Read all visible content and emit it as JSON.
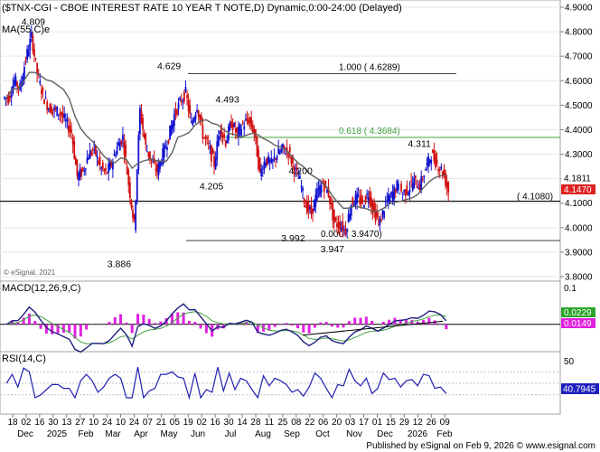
{
  "title": "($TNX-CGI - CBOE INTEREST RATE 10 YEAR T NOTE,D) Dynamic,0:00-24:00 (Delayed)",
  "copyright": "© eSignal, 2021",
  "footer": "Published by eSignal on Feb 9, 2026 © www.esignal.com",
  "colors": {
    "up": "#1010d0",
    "down": "#d01010",
    "ma": "#606060",
    "fib100": "#404040",
    "fib618": "#40a040",
    "fib0": "#404040",
    "support": "#000000",
    "macd": "#202080",
    "signal": "#40a040",
    "hist": "#e020e0",
    "rsi": "#2020b0",
    "last_price_bg": "#e02020"
  },
  "chart_data": [
    {
      "type": "line",
      "panel": "price",
      "ylim": [
        3.8,
        4.9
      ],
      "yticks": [
        "4.9000",
        "4.8000",
        "4.7000",
        "4.6000",
        "4.5000",
        "4.4000",
        "4.3000",
        "4.2000",
        "4.1000",
        "4.0000",
        "3.9000",
        "3.8000"
      ],
      "ma_label": "MA(55,C)e",
      "ma_value": 4.1811,
      "last_price": 4.147,
      "last_price_label": "4.1470",
      "ma_value_label": "4.1811",
      "peak_labels": [
        {
          "text": "4.809",
          "x": "Jan 13 2025",
          "y": 4.809
        },
        {
          "text": "4.629",
          "x": "May 21 2025",
          "y": 4.629
        },
        {
          "text": "4.493",
          "x": "Jul 15 2025",
          "y": 4.493
        },
        {
          "text": "4.311",
          "x": "Jan 12 2026",
          "y": 4.311
        },
        {
          "text": "4.200",
          "x": "Sep 22 2025",
          "y": 4.2
        },
        {
          "text": "4.205",
          "x": "Jun 30 2025",
          "y": 4.205
        },
        {
          "text": "3.992",
          "x": "Sep 15 2025",
          "y": 3.992
        },
        {
          "text": "3.947",
          "x": "Oct 22 2025",
          "y": 3.947
        },
        {
          "text": "3.886",
          "x": "Apr 04 2025",
          "y": 3.886
        }
      ],
      "levels": [
        {
          "label": "1.000 ( 4.6289)",
          "value": 4.6289,
          "kind": "fib100"
        },
        {
          "label": "0.618 ( 4.3684)",
          "value": 4.3684,
          "kind": "fib618"
        },
        {
          "label": "0.000 ( 3.9470)",
          "value": 3.947,
          "kind": "fib0"
        },
        {
          "label": "( 4.1080)",
          "value": 4.108,
          "kind": "support"
        }
      ],
      "weekly_closes": [
        4.53,
        4.6,
        4.57,
        4.69,
        4.78,
        4.63,
        4.54,
        4.49,
        4.48,
        4.47,
        4.43,
        4.39,
        4.21,
        4.23,
        4.3,
        4.32,
        4.25,
        4.22,
        4.26,
        4.33,
        4.37,
        4.18,
        4.01,
        4.48,
        4.33,
        4.27,
        4.23,
        4.3,
        4.37,
        4.46,
        4.51,
        4.55,
        4.42,
        4.5,
        4.38,
        4.33,
        4.26,
        4.41,
        4.35,
        4.43,
        4.38,
        4.42,
        4.44,
        4.39,
        4.22,
        4.28,
        4.26,
        4.3,
        4.32,
        4.31,
        4.24,
        4.19,
        4.09,
        4.06,
        4.14,
        4.18,
        4.14,
        4.02,
        4.01,
        3.99,
        4.1,
        4.12,
        4.1,
        4.14,
        4.06,
        4.02,
        4.1,
        4.13,
        4.17,
        4.14,
        4.16,
        4.19,
        4.17,
        4.24,
        4.3,
        4.26,
        4.23,
        4.15
      ]
    },
    {
      "type": "line",
      "panel": "macd",
      "title": "MACD(12,26,9,C)",
      "ylim": [
        -0.08,
        0.12
      ],
      "yticks": [
        "0.1"
      ],
      "macd_value": 0.0229,
      "macd_label": "0.0229",
      "signal_label": "0.0149"
    },
    {
      "type": "line",
      "panel": "rsi",
      "title": "RSI(14,C)",
      "ylim": [
        0,
        100
      ],
      "yticks": [
        "50"
      ],
      "rsi_value": 40.7945,
      "rsi_label": "40.7945"
    },
    {
      "type": "axis",
      "panel": "time",
      "day_ticks": [
        "18",
        "02",
        "16",
        "30",
        "13",
        "27",
        "10",
        "24",
        "10",
        "24",
        "07",
        "21",
        "05",
        "19",
        "02",
        "16",
        "30",
        "14",
        "28",
        "11",
        "25",
        "08",
        "22",
        "06",
        "20",
        "03",
        "17",
        "01",
        "15",
        "29",
        "12",
        "26",
        "09"
      ],
      "months": [
        "Dec",
        "2025",
        "Feb",
        "Mar",
        "Apr",
        "May",
        "Jun",
        "Jul",
        "Aug",
        "Sep",
        "Oct",
        "Nov",
        "Dec",
        "2026",
        "Feb"
      ]
    }
  ]
}
